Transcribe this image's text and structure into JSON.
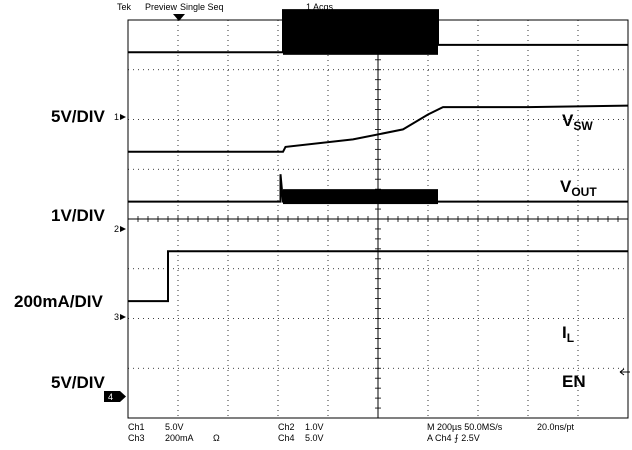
{
  "header": {
    "brand": "Tek",
    "mode": "Preview",
    "acquisition": "Single Seq",
    "acqs": "1 Acqs"
  },
  "volts_per_div_labels": [
    "5V/DIV",
    "1V/DIV",
    "200mA/DIV",
    "5V/DIV"
  ],
  "trace_labels": {
    "vsw_main": "V",
    "vsw_sub": "SW",
    "vout_main": "V",
    "vout_sub": "OUT",
    "il_main": "I",
    "il_sub": "L",
    "en": "EN"
  },
  "channel_markers": [
    "1",
    "2",
    "3",
    "4"
  ],
  "footer": {
    "ch1": "Ch1",
    "ch1_scale": "5.0V",
    "ch2": "Ch2",
    "ch2_scale": "1.0V",
    "ch3": "Ch3",
    "ch3_scale": "200mA",
    "ch3_unit": "Ω",
    "ch4": "Ch4",
    "ch4_scale": "5.0V",
    "timebase": "M 200µs 50.0MS/s",
    "sample_interval": "20.0ns/pt",
    "trigger": "A  Ch4  ⨍  2.5V"
  },
  "colors": {
    "trace": "#000000",
    "grid": "#000000",
    "background": "#ffffff"
  },
  "chart_data": {
    "type": "line",
    "title": "",
    "xlabel": "",
    "ylabel": "",
    "grid": true,
    "x_divisions": 10,
    "y_divisions": 8,
    "time_per_div_us": 200,
    "xlim_div": [
      0,
      10
    ],
    "ylim_div": [
      0,
      8
    ],
    "series": [
      {
        "name": "VSW",
        "ref_level_div": 3.0,
        "points": [
          [
            0,
            3.0
          ],
          [
            3.1,
            3.0
          ],
          [
            3.1,
            3.85
          ],
          [
            6.2,
            3.85
          ],
          [
            6.2,
            3.15
          ],
          [
            10,
            3.15
          ]
        ],
        "switching_band": {
          "x_start": 3.1,
          "x_end": 6.2,
          "low": 2.95,
          "high": 3.85
        }
      },
      {
        "name": "VOUT",
        "ref_level_div": 1.0,
        "points": [
          [
            0,
            1.0
          ],
          [
            3.1,
            1.0
          ],
          [
            3.15,
            1.1
          ],
          [
            4.5,
            1.25
          ],
          [
            5.5,
            1.45
          ],
          [
            6.0,
            1.75
          ],
          [
            6.3,
            1.9
          ],
          [
            7.0,
            1.9
          ],
          [
            8.0,
            1.9
          ],
          [
            10,
            1.93
          ]
        ]
      },
      {
        "name": "IL",
        "ref_level_div": 0.0,
        "points": [
          [
            0,
            0.0
          ],
          [
            3.05,
            0.0
          ],
          [
            3.05,
            0.55
          ],
          [
            3.1,
            0.0
          ],
          [
            6.2,
            0.0
          ],
          [
            10,
            0.0
          ]
        ],
        "switching_band": {
          "x_start": 3.1,
          "x_end": 6.2,
          "low": -0.05,
          "high": 0.25
        }
      },
      {
        "name": "EN",
        "ref_level_div": -2.0,
        "points": [
          [
            0,
            -2.0
          ],
          [
            0.8,
            -2.0
          ],
          [
            0.8,
            -1.0
          ],
          [
            10,
            -1.0
          ]
        ]
      }
    ]
  }
}
